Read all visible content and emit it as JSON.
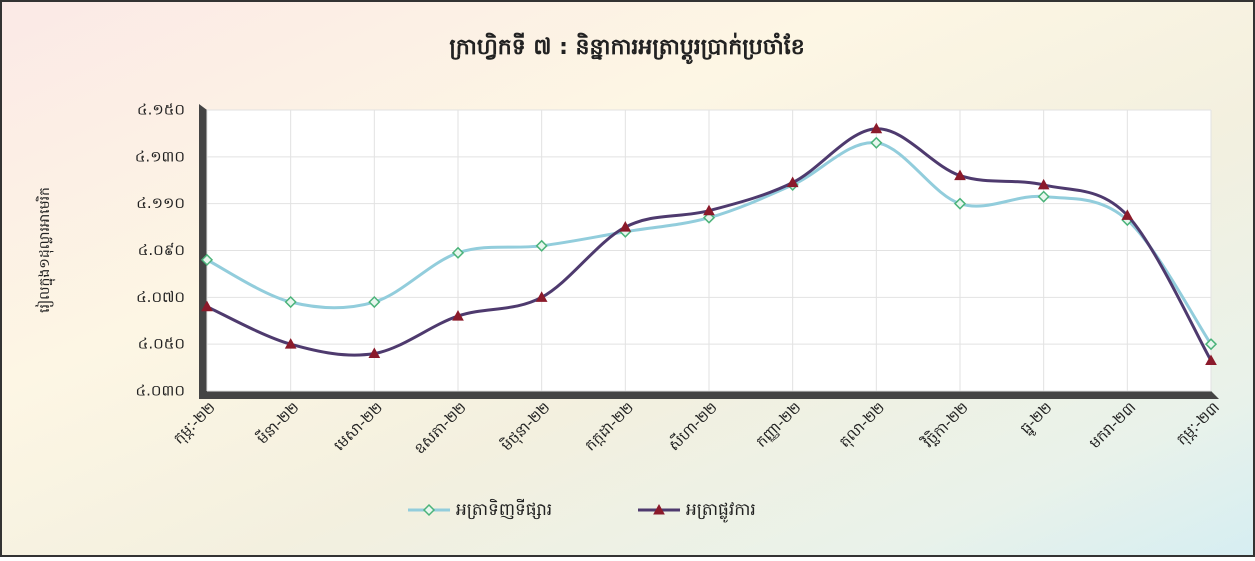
{
  "chart_data": {
    "type": "line",
    "title": "ក្រាហ្វិកទី ៧ : និន្នាការអត្រាប្តូរប្រាក់ប្រចាំខែ",
    "y_label": "រៀលក្នុង១ដុល្លារអាមេរិក",
    "categories": [
      "កុម្ភៈ-២២",
      "មីនា-២២",
      "មេសា-២២",
      "ឧសភា-២២",
      "មិថុនា-២២",
      "កក្កដា-២២",
      "សីហា-២២",
      "កញ្ញា-២២",
      "តុលា-២២",
      "វិច្ឆិកា-២២",
      "ធ្នូ-២២",
      "មករា-២៣",
      "កុម្ភៈ-២៣"
    ],
    "series": [
      {
        "name": "អត្រាទិញទីផ្សារ",
        "color": "#92cddc",
        "marker": "diamond",
        "marker_color": "#4bb37a",
        "values": [
          4086,
          4068,
          4068,
          4089,
          4092,
          4098,
          4104,
          4118,
          4136,
          4110,
          4113,
          4103,
          4050
        ]
      },
      {
        "name": "អត្រាផ្លូវការ",
        "color": "#4e3a6e",
        "marker": "triangle",
        "marker_color": "#8b1a2b",
        "values": [
          4066,
          4050,
          4046,
          4062,
          4070,
          4100,
          4107,
          4119,
          4142,
          4122,
          4118,
          4105,
          4043
        ]
      }
    ],
    "ylim": [
      4030,
      4150
    ],
    "yticks": [
      {
        "value": 4030,
        "label": "៤.០៣០"
      },
      {
        "value": 4050,
        "label": "៤.០៥០"
      },
      {
        "value": 4070,
        "label": "៤.០៧០"
      },
      {
        "value": 4090,
        "label": "៤.០៩០"
      },
      {
        "value": 4110,
        "label": "៤.១១០"
      },
      {
        "value": 4130,
        "label": "៤.១៣០"
      },
      {
        "value": 4150,
        "label": "៤.១៥០"
      }
    ],
    "grid": true,
    "legend": "bottom"
  }
}
